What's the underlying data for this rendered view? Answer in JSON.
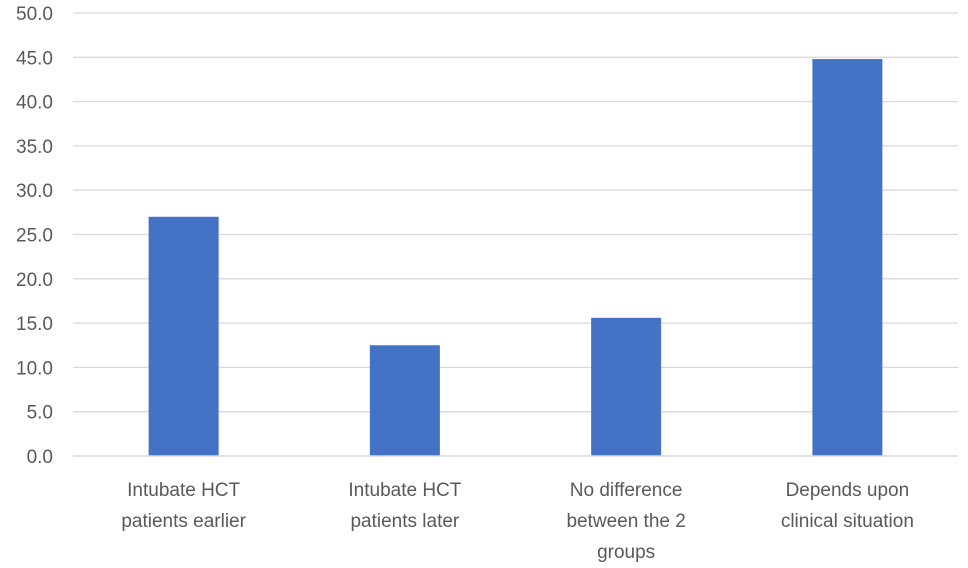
{
  "chart_data": {
    "type": "bar",
    "categories": [
      [
        "Intubate HCT",
        "patients earlier"
      ],
      [
        "Intubate HCT",
        "patients later"
      ],
      [
        "No difference",
        "between the 2",
        "groups"
      ],
      [
        "Depends upon",
        "clinical situation"
      ]
    ],
    "values": [
      27.0,
      12.5,
      15.6,
      44.8
    ],
    "ylim": [
      0,
      50
    ],
    "ytick_step": 5,
    "ytick_labels": [
      "0.0",
      "5.0",
      "10.0",
      "15.0",
      "20.0",
      "25.0",
      "30.0",
      "35.0",
      "40.0",
      "45.0",
      "50.0"
    ],
    "title": "",
    "xlabel": "",
    "ylabel": "",
    "grid": true,
    "legend": "none",
    "bar_color": "#4472c4"
  }
}
